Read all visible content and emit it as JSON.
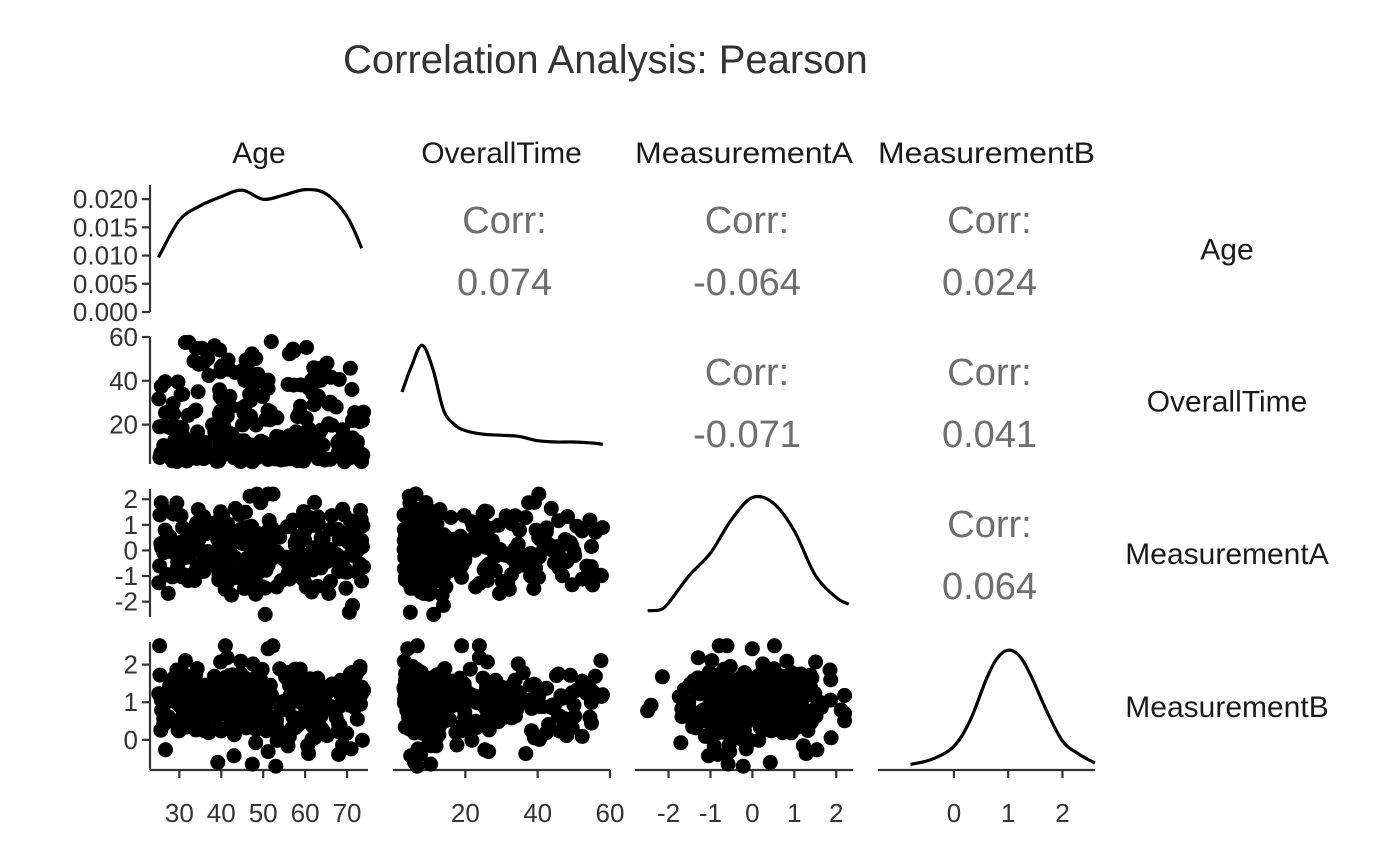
{
  "chart_data": {
    "type": "scatter",
    "title": "Correlation Analysis: Pearson",
    "variables": [
      "Age",
      "OverallTime",
      "MeasurementA",
      "MeasurementB"
    ],
    "col_ranges": {
      "Age": [
        23,
        75
      ],
      "OverallTime": [
        0,
        60
      ],
      "MeasurementA": [
        -2.8,
        2.4
      ],
      "MeasurementB": [
        -1.4,
        2.6
      ]
    },
    "row_ranges": {
      "OverallTime": [
        2,
        60
      ],
      "MeasurementA": [
        -2.6,
        2.4
      ],
      "MeasurementB": [
        -0.8,
        2.6
      ]
    },
    "density_axis": {
      "ticks": [
        0.0,
        0.005,
        0.01,
        0.015,
        0.02
      ],
      "tick_labels": [
        "0.000",
        "0.005",
        "0.010",
        "0.015",
        "0.020"
      ],
      "range": [
        0,
        0.0225
      ]
    },
    "x_ticks": {
      "Age": {
        "values": [
          30,
          40,
          50,
          60,
          70
        ],
        "labels": [
          "30",
          "40",
          "50",
          "60",
          "70"
        ]
      },
      "OverallTime": {
        "values": [
          20,
          40,
          60
        ],
        "labels": [
          "20",
          "40",
          "60"
        ]
      },
      "MeasurementA": {
        "values": [
          -2,
          -1,
          0,
          1,
          2
        ],
        "labels": [
          "-2",
          "-1",
          "0",
          "1",
          "2"
        ]
      },
      "MeasurementB": {
        "values": [
          0,
          1,
          2
        ],
        "labels": [
          "0",
          "1",
          "2"
        ]
      }
    },
    "y_ticks": {
      "OverallTime": {
        "values": [
          20,
          40,
          60
        ],
        "labels": [
          "20",
          "40",
          "60"
        ]
      },
      "MeasurementA": {
        "values": [
          -2,
          -1,
          0,
          1,
          2
        ],
        "labels": [
          "-2",
          "-1",
          "0",
          "1",
          "2"
        ]
      },
      "MeasurementB": {
        "values": [
          0,
          1,
          2
        ],
        "labels": [
          "0",
          "1",
          "2"
        ]
      }
    },
    "correlations": [
      {
        "row": "Age",
        "col": "OverallTime",
        "label": "Corr:",
        "value": "0.074"
      },
      {
        "row": "Age",
        "col": "MeasurementA",
        "label": "Corr:",
        "value": "-0.064"
      },
      {
        "row": "Age",
        "col": "MeasurementB",
        "label": "Corr:",
        "value": "0.024"
      },
      {
        "row": "OverallTime",
        "col": "MeasurementA",
        "label": "Corr:",
        "value": "-0.071"
      },
      {
        "row": "OverallTime",
        "col": "MeasurementB",
        "label": "Corr:",
        "value": "0.041"
      },
      {
        "row": "MeasurementA",
        "col": "MeasurementB",
        "label": "Corr:",
        "value": "0.064"
      }
    ],
    "densities": {
      "Age": {
        "x": [
          25,
          30,
          35,
          40,
          45,
          50,
          55,
          60,
          65,
          70,
          73.5
        ],
        "y": [
          0.0096,
          0.0165,
          0.0192,
          0.0209,
          0.0221,
          0.0204,
          0.0212,
          0.0222,
          0.0214,
          0.0172,
          0.0113
        ]
      },
      "OverallTime": {
        "x": [
          2.5,
          5,
          8,
          11,
          14,
          17,
          20,
          25,
          30,
          35,
          40,
          45,
          50,
          55,
          58
        ],
        "y": [
          0.0265,
          0.036,
          0.0445,
          0.0355,
          0.0195,
          0.014,
          0.0117,
          0.0103,
          0.0099,
          0.0094,
          0.0078,
          0.0073,
          0.0073,
          0.0069,
          0.0064
        ]
      },
      "MeasurementA": {
        "x": [
          -2.5,
          -2.2,
          -2.0,
          -1.5,
          -1.0,
          -0.5,
          0.0,
          0.5,
          1.0,
          1.5,
          2.0,
          2.3
        ],
        "y": [
          0.012,
          0.015,
          0.04,
          0.14,
          0.22,
          0.34,
          0.42,
          0.4,
          0.3,
          0.14,
          0.06,
          0.035
        ]
      },
      "MeasurementB": {
        "x": [
          -0.8,
          -0.4,
          0.0,
          0.3,
          0.6,
          0.8,
          1.0,
          1.2,
          1.4,
          1.7,
          2.0,
          2.3,
          2.6
        ],
        "y": [
          0.01,
          0.03,
          0.08,
          0.18,
          0.34,
          0.42,
          0.45,
          0.43,
          0.36,
          0.22,
          0.1,
          0.05,
          0.015
        ]
      }
    },
    "density_ymax": {
      "Age": 0.0225,
      "OverallTime": 0.0465,
      "MeasurementA": 0.44,
      "MeasurementB": 0.47
    },
    "n_points": 300,
    "grid": false,
    "legend": "none"
  }
}
